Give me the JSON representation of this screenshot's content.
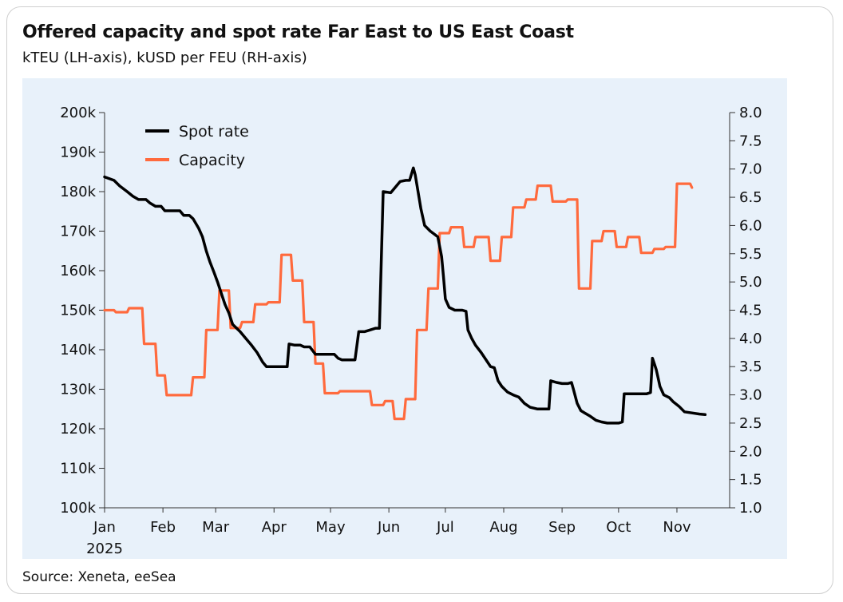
{
  "chart_data": {
    "type": "line",
    "title": "Offered capacity and spot rate Far East to US East Coast",
    "subtitle": "kTEU (LH-axis), kUSD per FEU (RH-axis)",
    "source": "Source: Xeneta, eeSea",
    "x_tick_labels": [
      "Jan",
      "Feb",
      "Mar",
      "Apr",
      "May",
      "Jun",
      "Jul",
      "Aug",
      "Sep",
      "Oct",
      "Nov"
    ],
    "x_year_label": "2025",
    "x_range_days": [
      0,
      332
    ],
    "y_left": {
      "range": [
        100,
        200
      ],
      "ticks": [
        "100k",
        "110k",
        "120k",
        "130k",
        "140k",
        "150k",
        "160k",
        "170k",
        "180k",
        "190k",
        "200k"
      ]
    },
    "y_right": {
      "range": [
        1.0,
        8.0
      ],
      "ticks": [
        "1.0",
        "1.5",
        "2.0",
        "2.5",
        "3.0",
        "3.5",
        "4.0",
        "4.5",
        "5.0",
        "5.5",
        "6.0",
        "6.5",
        "7.0",
        "7.5",
        "8.0"
      ]
    },
    "legend_position": "top-left",
    "series": [
      {
        "name": "Spot rate",
        "axis": "right",
        "color": "#000000",
        "points": [
          [
            0,
            6.86
          ],
          [
            5,
            6.8
          ],
          [
            8,
            6.7
          ],
          [
            12,
            6.6
          ],
          [
            15,
            6.52
          ],
          [
            18,
            6.46
          ],
          [
            22,
            6.46
          ],
          [
            24,
            6.4
          ],
          [
            27,
            6.34
          ],
          [
            30,
            6.34
          ],
          [
            32,
            6.26
          ],
          [
            36,
            6.26
          ],
          [
            40,
            6.26
          ],
          [
            42,
            6.18
          ],
          [
            45,
            6.18
          ],
          [
            47,
            6.12
          ],
          [
            50,
            5.95
          ],
          [
            52,
            5.8
          ],
          [
            54,
            5.55
          ],
          [
            56,
            5.35
          ],
          [
            58,
            5.18
          ],
          [
            60,
            5.0
          ],
          [
            62,
            4.8
          ],
          [
            64,
            4.6
          ],
          [
            66,
            4.45
          ],
          [
            68,
            4.25
          ],
          [
            72,
            4.12
          ],
          [
            75,
            4.0
          ],
          [
            78,
            3.88
          ],
          [
            81,
            3.75
          ],
          [
            84,
            3.58
          ],
          [
            86,
            3.5
          ],
          [
            90,
            3.5
          ],
          [
            95,
            3.5
          ],
          [
            97,
            3.5
          ],
          [
            98,
            3.9
          ],
          [
            101,
            3.88
          ],
          [
            104,
            3.88
          ],
          [
            106,
            3.85
          ],
          [
            109,
            3.85
          ],
          [
            112,
            3.72
          ],
          [
            118,
            3.72
          ],
          [
            122,
            3.72
          ],
          [
            124,
            3.65
          ],
          [
            126,
            3.62
          ],
          [
            128,
            3.62
          ],
          [
            133,
            3.62
          ],
          [
            135,
            4.12
          ],
          [
            138,
            4.12
          ],
          [
            141,
            4.15
          ],
          [
            144,
            4.18
          ],
          [
            146,
            4.18
          ],
          [
            148,
            6.6
          ],
          [
            152,
            6.58
          ],
          [
            155,
            6.7
          ],
          [
            157,
            6.78
          ],
          [
            160,
            6.8
          ],
          [
            162,
            6.8
          ],
          [
            164,
            7.02
          ],
          [
            165,
            6.9
          ],
          [
            166,
            6.7
          ],
          [
            168,
            6.3
          ],
          [
            170,
            6.0
          ],
          [
            173,
            5.9
          ],
          [
            175,
            5.85
          ],
          [
            177,
            5.8
          ],
          [
            179,
            5.45
          ],
          [
            180,
            5.1
          ],
          [
            181,
            4.7
          ],
          [
            183,
            4.55
          ],
          [
            186,
            4.5
          ],
          [
            190,
            4.5
          ],
          [
            192,
            4.48
          ],
          [
            193,
            4.15
          ],
          [
            195,
            4.0
          ],
          [
            197,
            3.88
          ],
          [
            200,
            3.75
          ],
          [
            203,
            3.6
          ],
          [
            205,
            3.5
          ],
          [
            207,
            3.48
          ],
          [
            209,
            3.25
          ],
          [
            211,
            3.15
          ],
          [
            214,
            3.05
          ],
          [
            217,
            3.0
          ],
          [
            220,
            2.96
          ],
          [
            223,
            2.85
          ],
          [
            226,
            2.78
          ],
          [
            230,
            2.75
          ],
          [
            233,
            2.75
          ],
          [
            236,
            2.75
          ],
          [
            237,
            3.25
          ],
          [
            240,
            3.22
          ],
          [
            243,
            3.2
          ],
          [
            246,
            3.2
          ],
          [
            248,
            3.22
          ],
          [
            249,
            3.1
          ],
          [
            251,
            2.85
          ],
          [
            253,
            2.72
          ],
          [
            255,
            2.68
          ],
          [
            258,
            2.62
          ],
          [
            261,
            2.55
          ],
          [
            264,
            2.52
          ],
          [
            267,
            2.5
          ],
          [
            270,
            2.5
          ],
          [
            273,
            2.5
          ],
          [
            275,
            2.52
          ],
          [
            276,
            3.02
          ],
          [
            280,
            3.02
          ],
          [
            284,
            3.02
          ],
          [
            288,
            3.02
          ],
          [
            290,
            3.04
          ],
          [
            291,
            3.65
          ],
          [
            292,
            3.55
          ],
          [
            293,
            3.45
          ],
          [
            294,
            3.3
          ],
          [
            295,
            3.15
          ],
          [
            297,
            3.0
          ],
          [
            300,
            2.95
          ],
          [
            302,
            2.88
          ],
          [
            305,
            2.8
          ],
          [
            308,
            2.7
          ],
          [
            312,
            2.68
          ],
          [
            316,
            2.66
          ],
          [
            319,
            2.65
          ]
        ]
      },
      {
        "name": "Capacity",
        "axis": "left",
        "color": "#ff6a3d",
        "points": [
          [
            0,
            150
          ],
          [
            5,
            150
          ],
          [
            6,
            149.5
          ],
          [
            12,
            149.5
          ],
          [
            13,
            150.5
          ],
          [
            20,
            150.5
          ],
          [
            21,
            141.5
          ],
          [
            27,
            141.5
          ],
          [
            28,
            133.5
          ],
          [
            32,
            133.5
          ],
          [
            33,
            128.5
          ],
          [
            46,
            128.5
          ],
          [
            47,
            133
          ],
          [
            53,
            133
          ],
          [
            54,
            145
          ],
          [
            60,
            145
          ],
          [
            61,
            155
          ],
          [
            66,
            155
          ],
          [
            67,
            145.5
          ],
          [
            72,
            145.5
          ],
          [
            73,
            147
          ],
          [
            79,
            147
          ],
          [
            80,
            151.5
          ],
          [
            86,
            151.5
          ],
          [
            87,
            152
          ],
          [
            93,
            152
          ],
          [
            94,
            164
          ],
          [
            99,
            164
          ],
          [
            100,
            157.5
          ],
          [
            105,
            157.5
          ],
          [
            106,
            147
          ],
          [
            111,
            147
          ],
          [
            112,
            136.5
          ],
          [
            116,
            136.5
          ],
          [
            117,
            129
          ],
          [
            124,
            129
          ],
          [
            125,
            129.5
          ],
          [
            133,
            129.5
          ],
          [
            134,
            129.5
          ],
          [
            141,
            129.5
          ],
          [
            142,
            126
          ],
          [
            148,
            126
          ],
          [
            149,
            127
          ],
          [
            153,
            127
          ],
          [
            154,
            122.5
          ],
          [
            159,
            122.5
          ],
          [
            160,
            127.5
          ],
          [
            165,
            127.5
          ],
          [
            166,
            145
          ],
          [
            171,
            145
          ],
          [
            172,
            155.5
          ],
          [
            177,
            155.5
          ],
          [
            178,
            169.5
          ],
          [
            183,
            169.5
          ],
          [
            184,
            171
          ],
          [
            190,
            171
          ],
          [
            191,
            166
          ],
          [
            196,
            166
          ],
          [
            197,
            168.5
          ],
          [
            204,
            168.5
          ],
          [
            205,
            162.5
          ],
          [
            210,
            162.5
          ],
          [
            211,
            168.5
          ],
          [
            216,
            168.5
          ],
          [
            217,
            176
          ],
          [
            223,
            176
          ],
          [
            224,
            178
          ],
          [
            229,
            178
          ],
          [
            230,
            181.5
          ],
          [
            237,
            181.5
          ],
          [
            238,
            177.5
          ],
          [
            245,
            177.5
          ],
          [
            246,
            178
          ],
          [
            251,
            178
          ],
          [
            252,
            155.5
          ],
          [
            258,
            155.5
          ],
          [
            259,
            167.5
          ],
          [
            264,
            167.5
          ],
          [
            265,
            170
          ],
          [
            271,
            170
          ],
          [
            272,
            166
          ],
          [
            277,
            166
          ],
          [
            278,
            168.5
          ],
          [
            284,
            168.5
          ],
          [
            285,
            164.5
          ],
          [
            291,
            164.5
          ],
          [
            292,
            165.5
          ],
          [
            297,
            165.5
          ],
          [
            298,
            166
          ],
          [
            303,
            166
          ],
          [
            304,
            182
          ],
          [
            311,
            182
          ],
          [
            312,
            181
          ]
        ]
      }
    ]
  }
}
